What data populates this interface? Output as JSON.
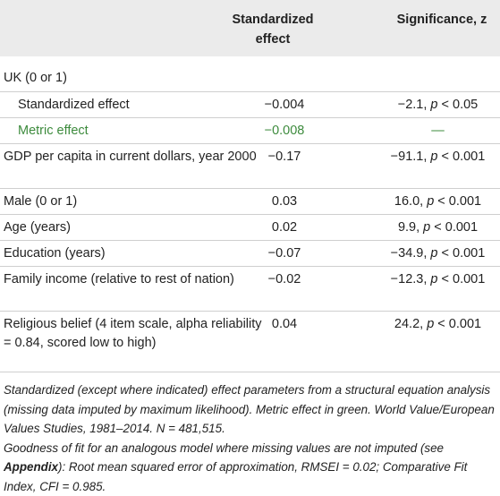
{
  "table": {
    "header": [
      "Standardized effect",
      "Significance, z"
    ],
    "rows": [
      {
        "label": "UK (0 or 1)"
      },
      {
        "label": "Standardized effect",
        "indent": true,
        "effect": "−0.004",
        "sig": [
          "−2.1, ",
          "p",
          " < 0.05"
        ]
      },
      {
        "label": "Metric effect",
        "indent": true,
        "color": "#3d8b3d",
        "effect": "−0.008",
        "sig": [
          "—"
        ]
      },
      {
        "label": "GDP per capita in current dollars, year 2000",
        "effect": "−0.17",
        "sig": [
          "−91.1, ",
          "p",
          " < 0.001"
        ]
      },
      {
        "label": "Male (0 or 1)",
        "effect": "0.03",
        "sig": [
          "16.0, ",
          "p",
          " < 0.001"
        ]
      },
      {
        "label": "Age (years)",
        "effect": "0.02",
        "sig": [
          "9.9, ",
          "p",
          " < 0.001"
        ]
      },
      {
        "label": "Education (years)",
        "effect": "−0.07",
        "sig": [
          "−34.9, ",
          "p",
          " < 0.001"
        ]
      },
      {
        "label": "Family income (relative to rest of nation)",
        "effect": "−0.02",
        "sig": [
          "−12.3, ",
          "p",
          " < 0.001"
        ]
      },
      {
        "label": "Religious belief (4 item scale, alpha reliability = 0.84, scored low to high)",
        "effect": "0.04",
        "sig": [
          "24.2, ",
          "p",
          " < 0.001"
        ]
      }
    ]
  },
  "footnote": [
    [
      "Standardized (except where indicated) effect parameters from a structural equation analysis (missing data imputed by maximum likelihood). Metric effect in green. World Value/European Values Studies, 1981–2014. N = 481,515."
    ],
    [
      "Goodness of fit for an analogous model where missing values are not imputed (see ",
      "Appendix",
      "): Root mean squared error of approximation, RMSEI = 0.02; Comparative Fit Index, CFI = 0.985."
    ]
  ]
}
